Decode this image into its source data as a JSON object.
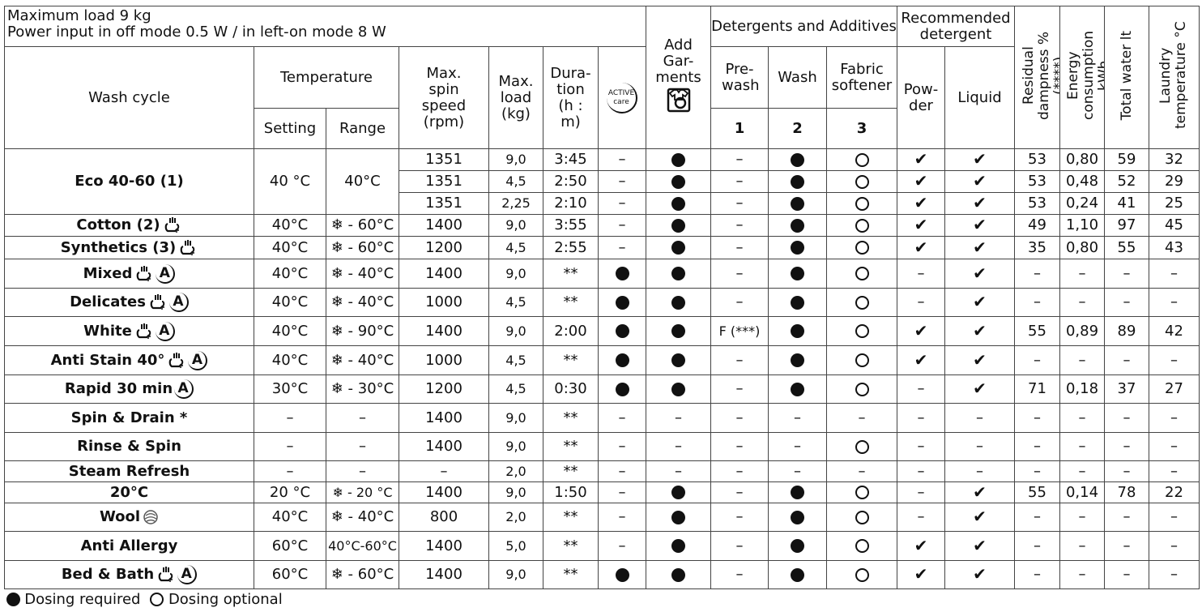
{
  "header": {
    "max_load": "Maximum load 9 kg",
    "power": "Power input in off mode 0.5 W / in left-on mode 8 W",
    "wash_cycle": "Wash cycle",
    "temperature": "Temperature",
    "setting": "Setting",
    "range": "Range",
    "spin": "Max. spin speed (rpm)",
    "load": "Max. load (kg)",
    "duration": "Dura- tion (h : m)",
    "active_care": "ACTIVE care",
    "add_garments": "Add Gar- ments",
    "detergents": "Detergents and Additives",
    "prewash": "Pre- wash",
    "wash": "Wash",
    "softener": "Fabric softener",
    "n1": "1",
    "n2": "2",
    "n3": "3",
    "recommended": "Recommended detergent",
    "powder": "Pow- der",
    "liquid": "Liquid",
    "residual": "Residual dampness % (****)",
    "energy": "Energy consumption kWh",
    "water": "Total water lt",
    "laundry_temp": "Laundry temperature °C"
  },
  "symbols": {
    "F": "filled-circle",
    "O": "open-circle",
    "V": "check",
    "-": "–"
  },
  "rows": [
    {
      "name": "Eco 40-60 (1)",
      "icons": [],
      "setting": "40 °C",
      "range": "40°C",
      "sub": [
        [
          "1351",
          "9,0",
          "3:45",
          "-",
          "F",
          "-",
          "F",
          "O",
          "V",
          "V",
          "53",
          "0,80",
          "59",
          "32"
        ],
        [
          "1351",
          "4,5",
          "2:50",
          "-",
          "F",
          "-",
          "F",
          "O",
          "V",
          "V",
          "53",
          "0,48",
          "52",
          "29"
        ],
        [
          "1351",
          "2,25",
          "2:10",
          "-",
          "F",
          "-",
          "F",
          "O",
          "V",
          "V",
          "53",
          "0,24",
          "41",
          "25"
        ]
      ]
    },
    {
      "name": "Cotton (2)",
      "icons": [
        "option"
      ],
      "setting": "40°C",
      "range": "❄ - 60°C",
      "sub": [
        [
          "1400",
          "9,0",
          "3:55",
          "-",
          "F",
          "-",
          "F",
          "O",
          "V",
          "V",
          "49",
          "1,10",
          "97",
          "45"
        ]
      ]
    },
    {
      "name": "Synthetics (3)",
      "icons": [
        "option"
      ],
      "setting": "40°C",
      "range": "❄ - 60°C",
      "sub": [
        [
          "1200",
          "4,5",
          "2:55",
          "-",
          "F",
          "-",
          "F",
          "O",
          "V",
          "V",
          "35",
          "0,80",
          "55",
          "43"
        ]
      ]
    },
    {
      "name": "Mixed",
      "icons": [
        "option",
        "active"
      ],
      "setting": "40°C",
      "range": "❄ - 40°C",
      "sub": [
        [
          "1400",
          "9,0",
          "**",
          "F",
          "F",
          "-",
          "F",
          "O",
          "-",
          "V",
          "-",
          "-",
          "-",
          "-"
        ]
      ]
    },
    {
      "name": "Delicates",
      "icons": [
        "option",
        "active"
      ],
      "setting": "40°C",
      "range": "❄ - 40°C",
      "sub": [
        [
          "1000",
          "4,5",
          "**",
          "F",
          "F",
          "-",
          "F",
          "O",
          "-",
          "V",
          "-",
          "-",
          "-",
          "-"
        ]
      ]
    },
    {
      "name": "White",
      "icons": [
        "option",
        "active"
      ],
      "setting": "40°C",
      "range": "❄ - 90°C",
      "sub": [
        [
          "1400",
          "9,0",
          "2:00",
          "F",
          "F",
          "F (***)",
          "F",
          "O",
          "V",
          "V",
          "55",
          "0,89",
          "89",
          "42"
        ]
      ]
    },
    {
      "name": "Anti Stain 40°",
      "icons": [
        "option",
        "active"
      ],
      "setting": "40°C",
      "range": "❄ - 40°C",
      "sub": [
        [
          "1000",
          "4,5",
          "**",
          "F",
          "F",
          "-",
          "F",
          "O",
          "V",
          "V",
          "-",
          "-",
          "-",
          "-"
        ]
      ]
    },
    {
      "name": "Rapid 30 min",
      "icons": [
        "active"
      ],
      "setting": "30°C",
      "range": "❄ - 30°C",
      "sub": [
        [
          "1200",
          "4,5",
          "0:30",
          "F",
          "F",
          "-",
          "F",
          "O",
          "-",
          "V",
          "71",
          "0,18",
          "37",
          "27"
        ]
      ]
    },
    {
      "name": "Spin & Drain *",
      "icons": [],
      "setting": "–",
      "range": "–",
      "sub": [
        [
          "1400",
          "9,0",
          "**",
          "-",
          "-",
          "-",
          "-",
          "-",
          "-",
          "-",
          "-",
          "-",
          "-",
          "-"
        ]
      ]
    },
    {
      "name": "Rinse & Spin",
      "icons": [],
      "setting": "–",
      "range": "–",
      "sub": [
        [
          "1400",
          "9,0",
          "**",
          "-",
          "-",
          "-",
          "-",
          "O",
          "-",
          "-",
          "-",
          "-",
          "-",
          "-"
        ]
      ]
    },
    {
      "name": "Steam Refresh",
      "icons": [],
      "setting": "–",
      "range": "–",
      "sub": [
        [
          "–",
          "2,0",
          "**",
          "-",
          "-",
          "-",
          "-",
          "-",
          "-",
          "-",
          "-",
          "-",
          "-",
          "-"
        ]
      ]
    },
    {
      "name": "20°C",
      "icons": [],
      "setting": "20 °C",
      "range": "❄ - 20 °C",
      "sub": [
        [
          "1400",
          "9,0",
          "1:50",
          "-",
          "F",
          "-",
          "F",
          "O",
          "-",
          "V",
          "55",
          "0,14",
          "78",
          "22"
        ]
      ]
    },
    {
      "name": "Wool",
      "icons": [
        "wool"
      ],
      "setting": "40°C",
      "range": "❄ - 40°C",
      "sub": [
        [
          "800",
          "2,0",
          "**",
          "-",
          "F",
          "-",
          "F",
          "O",
          "-",
          "V",
          "-",
          "-",
          "-",
          "-"
        ]
      ]
    },
    {
      "name": "Anti Allergy",
      "icons": [],
      "setting": "60°C",
      "range": "40°C-60°C",
      "sub": [
        [
          "1400",
          "5,0",
          "**",
          "-",
          "F",
          "-",
          "F",
          "O",
          "V",
          "V",
          "-",
          "-",
          "-",
          "-"
        ]
      ]
    },
    {
      "name": "Bed & Bath",
      "icons": [
        "option",
        "active"
      ],
      "setting": "60°C",
      "range": "❄ - 60°C",
      "sub": [
        [
          "1400",
          "9,0",
          "**",
          "F",
          "F",
          "-",
          "F",
          "O",
          "V",
          "V",
          "-",
          "-",
          "-",
          "-"
        ]
      ]
    }
  ],
  "legend": {
    "required": "Dosing required",
    "optional": "Dosing optional"
  }
}
